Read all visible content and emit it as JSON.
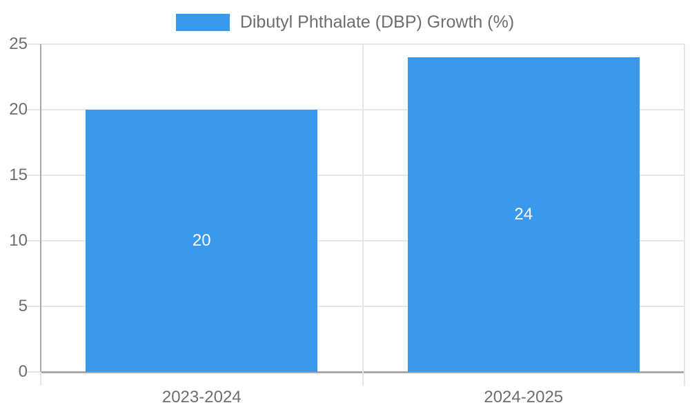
{
  "legend": {
    "label": "Dibutyl Phthalate (DBP) Growth (%)"
  },
  "chart_data": {
    "type": "bar",
    "title": "",
    "categories": [
      "2023-2024",
      "2024-2025"
    ],
    "series": [
      {
        "name": "Dibutyl Phthalate (DBP) Growth (%)",
        "color": "#3b99ec",
        "values": [
          20,
          24
        ]
      }
    ],
    "data_labels": [
      "20",
      "24"
    ],
    "xlabel": "",
    "ylabel": "",
    "ylim": [
      0,
      25
    ],
    "yticks": [
      0,
      5,
      10,
      15,
      20,
      25
    ],
    "grid": "on",
    "legend_position": "top-center"
  },
  "colors": {
    "bar": "#3b99ec",
    "grid_light": "#e6e6e6",
    "axis_dark": "#a9a9a9",
    "tick_text": "#6e6e6e",
    "data_label_text": "#ffffff",
    "background": "#ffffff"
  }
}
